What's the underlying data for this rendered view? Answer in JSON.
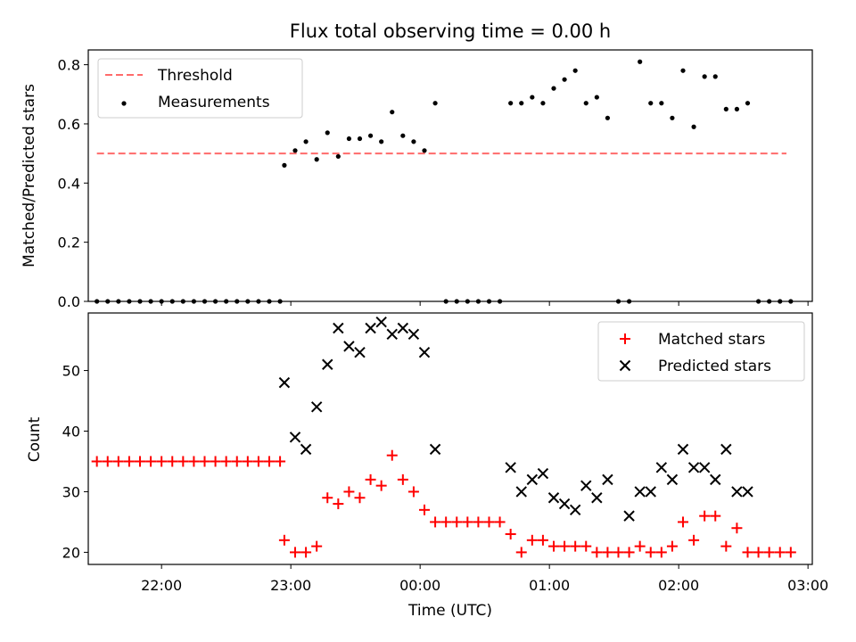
{
  "chart_data": {
    "type": "scatter",
    "title": "Flux total observing time = 0.00 h",
    "xlabel": "Time (UTC)",
    "x_ticks": [
      "22:00",
      "23:00",
      "00:00",
      "01:00",
      "02:00",
      "03:00"
    ],
    "x_range": [
      "21:26",
      "03:02"
    ],
    "colors": {
      "threshold": "#ff6b6b",
      "matched": "#ff0000",
      "predicted": "#000000",
      "measurements": "#000000"
    },
    "top": {
      "ylabel": "Matched/Predicted stars",
      "ylim": [
        0,
        0.85
      ],
      "y_ticks": [
        "0.0",
        "0.2",
        "0.4",
        "0.6",
        "0.8"
      ],
      "legend": {
        "placement": "upper-left",
        "entries": [
          "Threshold",
          "Measurements"
        ]
      },
      "threshold": {
        "name": "Threshold",
        "value": 0.5,
        "x_start": "21:30",
        "x_end": "02:50"
      },
      "measurements": {
        "name": "Measurements",
        "x": [
          "21:30",
          "21:35",
          "21:40",
          "21:45",
          "21:50",
          "21:55",
          "22:00",
          "22:05",
          "22:10",
          "22:15",
          "22:20",
          "22:25",
          "22:30",
          "22:35",
          "22:40",
          "22:45",
          "22:50",
          "22:55",
          "22:57",
          "23:02",
          "23:07",
          "23:12",
          "23:17",
          "23:22",
          "23:27",
          "23:32",
          "23:37",
          "23:42",
          "23:47",
          "23:52",
          "23:57",
          "00:02",
          "00:07",
          "00:12",
          "00:17",
          "00:22",
          "00:27",
          "00:32",
          "00:37",
          "00:42",
          "00:47",
          "00:52",
          "00:57",
          "01:02",
          "01:07",
          "01:12",
          "01:17",
          "01:22",
          "01:27",
          "01:32",
          "01:37",
          "01:42",
          "01:47",
          "01:52",
          "01:57",
          "02:02",
          "02:07",
          "02:12",
          "02:17",
          "02:22",
          "02:27",
          "02:32",
          "02:37",
          "02:42",
          "02:47",
          "02:52"
        ],
        "y": [
          0,
          0,
          0,
          0,
          0,
          0,
          0,
          0,
          0,
          0,
          0,
          0,
          0,
          0,
          0,
          0,
          0,
          0,
          0.46,
          0.51,
          0.54,
          0.48,
          0.57,
          0.49,
          0.55,
          0.55,
          0.56,
          0.54,
          0.64,
          0.56,
          0.54,
          0.51,
          0.67,
          0,
          0,
          0,
          0,
          0,
          0,
          0.67,
          0.67,
          0.69,
          0.67,
          0.72,
          0.75,
          0.78,
          0.67,
          0.69,
          0.62,
          0,
          0,
          0.81,
          0.67,
          0.67,
          0.62,
          0.78,
          0.59,
          0.76,
          0.76,
          0.65,
          0.65,
          0.67,
          0,
          0,
          0,
          0
        ]
      }
    },
    "bottom": {
      "ylabel": "Count",
      "ylim": [
        18,
        59.5
      ],
      "y_ticks": [
        "20",
        "30",
        "40",
        "50"
      ],
      "legend": {
        "placement": "upper-right",
        "entries": [
          "Matched stars",
          "Predicted stars"
        ]
      },
      "matched": {
        "name": "Matched stars",
        "x": [
          "21:30",
          "21:35",
          "21:40",
          "21:45",
          "21:50",
          "21:55",
          "22:00",
          "22:05",
          "22:10",
          "22:15",
          "22:20",
          "22:25",
          "22:30",
          "22:35",
          "22:40",
          "22:45",
          "22:50",
          "22:55",
          "22:57",
          "23:02",
          "23:07",
          "23:12",
          "23:17",
          "23:22",
          "23:27",
          "23:32",
          "23:37",
          "23:42",
          "23:47",
          "23:52",
          "23:57",
          "00:02",
          "00:07",
          "00:12",
          "00:17",
          "00:22",
          "00:27",
          "00:32",
          "00:37",
          "00:42",
          "00:47",
          "00:52",
          "00:57",
          "01:02",
          "01:07",
          "01:12",
          "01:17",
          "01:22",
          "01:27",
          "01:32",
          "01:37",
          "01:42",
          "01:47",
          "01:52",
          "01:57",
          "02:02",
          "02:07",
          "02:12",
          "02:17",
          "02:22",
          "02:27",
          "02:32",
          "02:37",
          "02:42",
          "02:47",
          "02:52"
        ],
        "y": [
          35,
          35,
          35,
          35,
          35,
          35,
          35,
          35,
          35,
          35,
          35,
          35,
          35,
          35,
          35,
          35,
          35,
          35,
          22,
          20,
          20,
          21,
          29,
          28,
          30,
          29,
          32,
          31,
          36,
          32,
          30,
          27,
          25,
          25,
          25,
          25,
          25,
          25,
          25,
          23,
          20,
          22,
          22,
          21,
          21,
          21,
          21,
          20,
          20,
          20,
          20,
          21,
          20,
          20,
          21,
          25,
          22,
          26,
          26,
          21,
          24,
          20,
          20,
          20,
          20,
          20
        ]
      },
      "predicted": {
        "name": "Predicted stars",
        "x": [
          "22:57",
          "23:02",
          "23:07",
          "23:12",
          "23:17",
          "23:22",
          "23:27",
          "23:32",
          "23:37",
          "23:42",
          "23:47",
          "23:52",
          "23:57",
          "00:02",
          "00:07",
          "00:42",
          "00:47",
          "00:52",
          "00:57",
          "01:02",
          "01:07",
          "01:12",
          "01:17",
          "01:22",
          "01:27",
          "01:37",
          "01:42",
          "01:47",
          "01:52",
          "01:57",
          "02:02",
          "02:07",
          "02:12",
          "02:17",
          "02:22",
          "02:27",
          "02:32"
        ],
        "y": [
          48,
          39,
          37,
          44,
          51,
          57,
          54,
          53,
          57,
          58,
          56,
          57,
          56,
          53,
          37,
          34,
          30,
          32,
          33,
          29,
          28,
          27,
          31,
          29,
          32,
          26,
          30,
          30,
          34,
          32,
          37,
          34,
          34,
          32,
          37,
          30,
          30
        ]
      }
    }
  }
}
